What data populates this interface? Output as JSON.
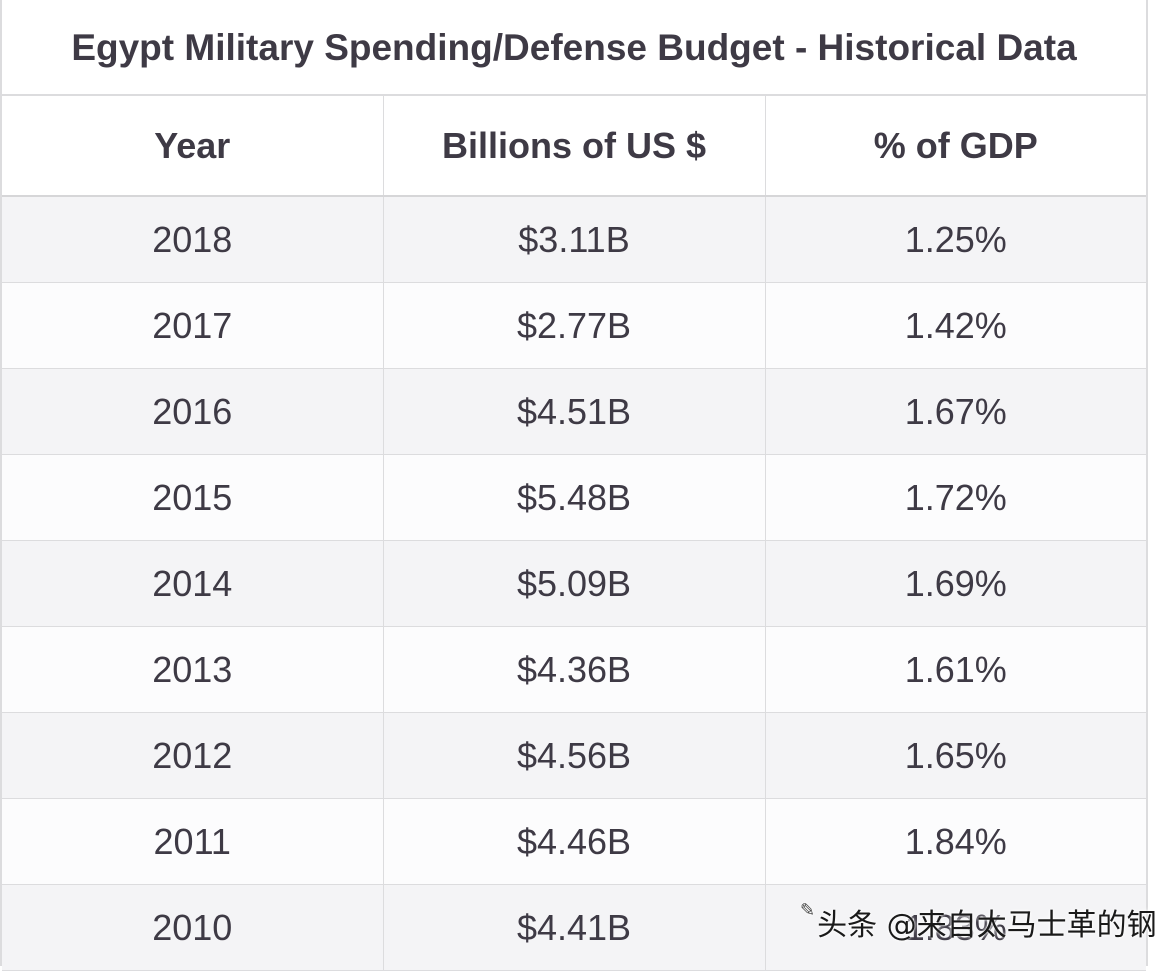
{
  "table": {
    "title": "Egypt Military Spending/Defense Budget - Historical Data",
    "headers": [
      "Year",
      "Billions of US $",
      "% of GDP"
    ],
    "rows": [
      [
        "2018",
        "$3.11B",
        "1.25%"
      ],
      [
        "2017",
        "$2.77B",
        "1.42%"
      ],
      [
        "2016",
        "$4.51B",
        "1.67%"
      ],
      [
        "2015",
        "$5.48B",
        "1.72%"
      ],
      [
        "2014",
        "$5.09B",
        "1.69%"
      ],
      [
        "2013",
        "$4.36B",
        "1.61%"
      ],
      [
        "2012",
        "$4.56B",
        "1.65%"
      ],
      [
        "2011",
        "$4.46B",
        "1.84%"
      ],
      [
        "2010",
        "$4.41B",
        "1.83%"
      ]
    ]
  },
  "watermark": {
    "text": "头条 @来自太马士革的钢",
    "icon": "toutiao-logo-icon"
  }
}
